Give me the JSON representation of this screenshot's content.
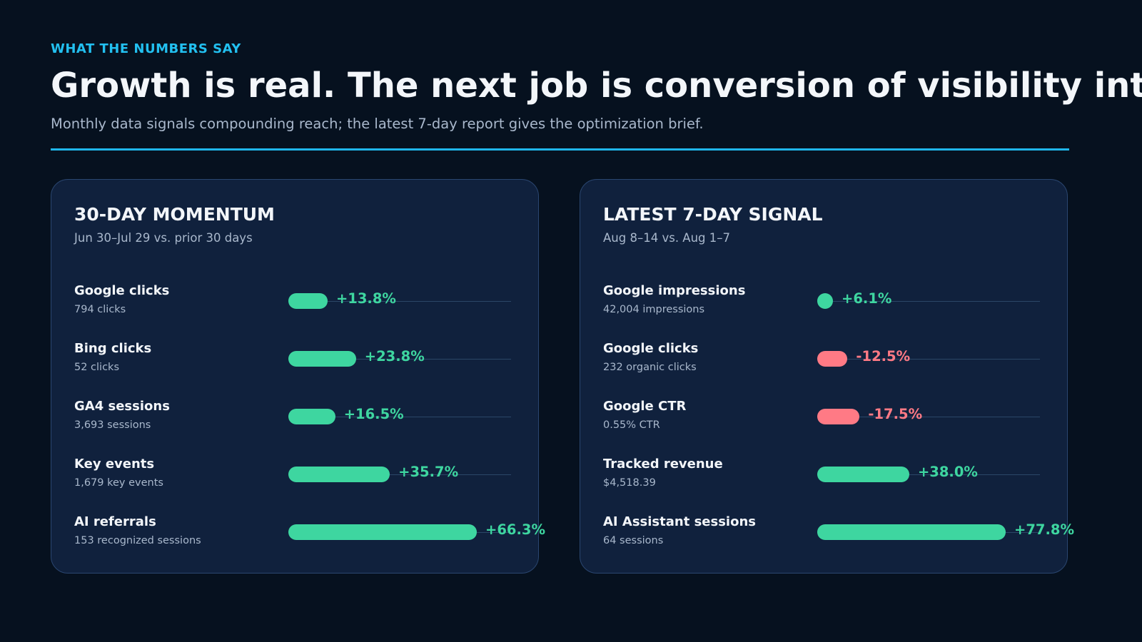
{
  "header": {
    "eyebrow": "WHAT THE NUMBERS SAY",
    "title": "Growth is real. The next job is conversion of visibility into action.",
    "subtitle": "Monthly data signals compounding reach; the latest 7-day report gives the optimization brief."
  },
  "panels": [
    {
      "title": "30-DAY MOMENTUM",
      "subtitle": "Jun 30–Jul 29 vs. prior 30 days",
      "rows": [
        {
          "label": "Google clicks",
          "detail": "794 clicks",
          "value": 13.8,
          "value_label": "+13.8%"
        },
        {
          "label": "Bing clicks",
          "detail": "52 clicks",
          "value": 23.8,
          "value_label": "+23.8%"
        },
        {
          "label": "GA4 sessions",
          "detail": "3,693 sessions",
          "value": 16.5,
          "value_label": "+16.5%"
        },
        {
          "label": "Key events",
          "detail": "1,679 key events",
          "value": 35.7,
          "value_label": "+35.7%"
        },
        {
          "label": "AI referrals",
          "detail": "153 recognized sessions",
          "value": 66.3,
          "value_label": "+66.3%"
        }
      ]
    },
    {
      "title": "LATEST 7-DAY SIGNAL",
      "subtitle": "Aug 8–14 vs. Aug 1–7",
      "rows": [
        {
          "label": "Google impressions",
          "detail": "42,004 impressions",
          "value": 6.1,
          "value_label": "+6.1%"
        },
        {
          "label": "Google clicks",
          "detail": "232 organic clicks",
          "value": -12.5,
          "value_label": "-12.5%"
        },
        {
          "label": "Google CTR",
          "detail": "0.55% CTR",
          "value": -17.5,
          "value_label": "-17.5%"
        },
        {
          "label": "Tracked revenue",
          "detail": "$4,518.39",
          "value": 38.0,
          "value_label": "+38.0%"
        },
        {
          "label": "AI Assistant sessions",
          "detail": "64 sessions",
          "value": 77.8,
          "value_label": "+77.8%"
        }
      ]
    }
  ],
  "colors": {
    "positive": "#3ed6a0",
    "negative": "#ff7a85"
  }
}
